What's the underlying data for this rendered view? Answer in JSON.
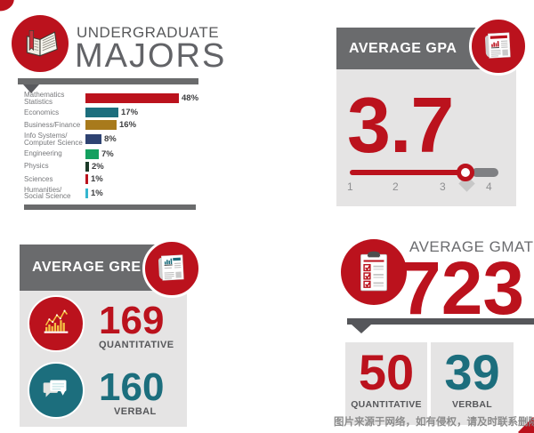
{
  "colors": {
    "red": "#bb121d",
    "teal": "#1c6e7d",
    "gold": "#a87a1c",
    "navy": "#2e4372",
    "green": "#14a05f",
    "dark_green": "#1c3a28",
    "cyan": "#35b6cf",
    "yellow": "#f6c344",
    "header_gray": "#6a6b6d",
    "divider_gray": "#6a6b6c",
    "divider_dark": "#55565a",
    "panel_gray": "#e5e4e4",
    "title_gray": "#58595b",
    "label_gray": "#77787b",
    "pct_gray": "#3e3f41",
    "tick_gray": "#8e8f91",
    "track_tail": "#7f8083",
    "watermark_gray": "#8c8c8c"
  },
  "majors": {
    "title_line1": "UNDERGRADUATE",
    "title_line2": "MAJORS",
    "icon": "open-book-icon"
  },
  "icons": {
    "majors": "open-book-icon",
    "gpa_badge": "newspaper-icon",
    "gre_badge": "newspaper-icon",
    "gre_quant": "bar-chart-icon",
    "gre_verbal": "speech-bubbles-icon",
    "gmat": "checklist-clipboard-icon"
  },
  "chart_data": [
    {
      "type": "bar",
      "orientation": "horizontal",
      "title": "UNDERGRADUATE MAJORS",
      "categories": [
        "Mathematics\nStatistics",
        "Economics",
        "Business/Finance",
        "Info Systems/\nComputer Science",
        "Engineering",
        "Physics",
        "Sciences",
        "Humanities/\nSocial Science"
      ],
      "values": [
        48,
        17,
        16,
        8,
        7,
        2,
        1,
        1
      ],
      "value_labels": [
        "48%",
        "17%",
        "16%",
        "8%",
        "7%",
        "2%",
        "1%",
        "1%"
      ],
      "colors": [
        "#bb121d",
        "#1c6e7d",
        "#a87a1c",
        "#2e4372",
        "#14a05f",
        "#1c3a28",
        "#bb121d",
        "#35b6cf"
      ],
      "unit": "%",
      "xlim": [
        0,
        50
      ],
      "grid": false,
      "legend": false
    },
    {
      "type": "gauge",
      "title": "AVERAGE GPA",
      "value": 3.7,
      "display": "3.7",
      "min": 1,
      "max": 4,
      "ticks": [
        "1",
        "2",
        "3",
        "4"
      ]
    },
    {
      "type": "stat",
      "title": "AVERAGE GRE",
      "series": [
        {
          "name": "QUANTITATIVE",
          "value": 169
        },
        {
          "name": "VERBAL",
          "value": 160
        }
      ]
    },
    {
      "type": "stat",
      "title": "AVERAGE GMAT",
      "value": 723,
      "display": "723",
      "series": [
        {
          "name": "QUANTITATIVE",
          "value": 50
        },
        {
          "name": "VERBAL",
          "value": 39
        }
      ]
    }
  ],
  "watermark": "图片来源于网络，如有侵权，请及时联系删除."
}
